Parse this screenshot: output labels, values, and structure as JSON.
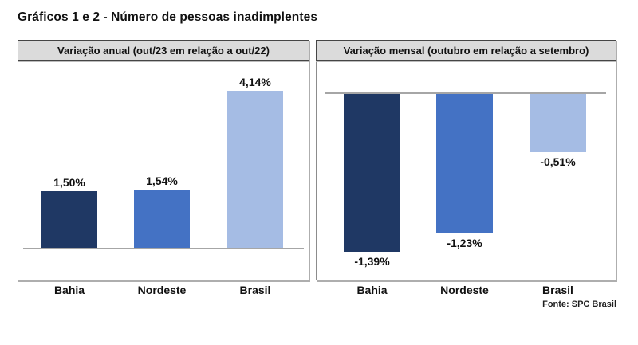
{
  "page": {
    "title": "Gráficos 1 e 2 - Número de pessoas inadimplentes",
    "source_note": "Fonte: SPC Brasil"
  },
  "colors": {
    "bar_dark_navy": "#1F3864",
    "bar_medium_blue": "#4472C4",
    "bar_light_blue": "#A5BCE4",
    "zero_axis_line": "#A6A6A6",
    "panel_header_bg": "#DBDBDB",
    "panel_header_border": "#454545",
    "panel_border": "#8C8C8C",
    "text": "#111111"
  },
  "chart_data": [
    {
      "type": "bar",
      "title": "Variação anual (out/23 em relação a out/22)",
      "categories": [
        "Bahia",
        "Nordeste",
        "Brasil"
      ],
      "values": [
        1.5,
        1.54,
        4.14
      ],
      "value_labels": [
        "1,50%",
        "1,54%",
        "4,14%"
      ],
      "bar_colors": [
        "#1F3864",
        "#4472C4",
        "#A5BCE4"
      ],
      "xlabel": "",
      "ylabel": "",
      "ylim": [
        0,
        4.5
      ],
      "grid": false,
      "legend_position": "none",
      "orientation": "columns-up",
      "value_label_position": "above-bar",
      "axis": "zero baseline only, no ticks"
    },
    {
      "type": "bar",
      "title": "Variação mensal (outubro em relação a setembro)",
      "categories": [
        "Bahia",
        "Nordeste",
        "Brasil"
      ],
      "values": [
        -1.39,
        -1.23,
        -0.51
      ],
      "value_labels": [
        "-1,39%",
        "-1,23%",
        "-0,51%"
      ],
      "bar_colors": [
        "#1F3864",
        "#4472C4",
        "#A5BCE4"
      ],
      "xlabel": "",
      "ylabel": "",
      "ylim": [
        -1.65,
        0
      ],
      "grid": false,
      "legend_position": "none",
      "orientation": "columns-down",
      "value_label_position": "below-bar",
      "axis": "zero baseline only, no ticks"
    }
  ]
}
